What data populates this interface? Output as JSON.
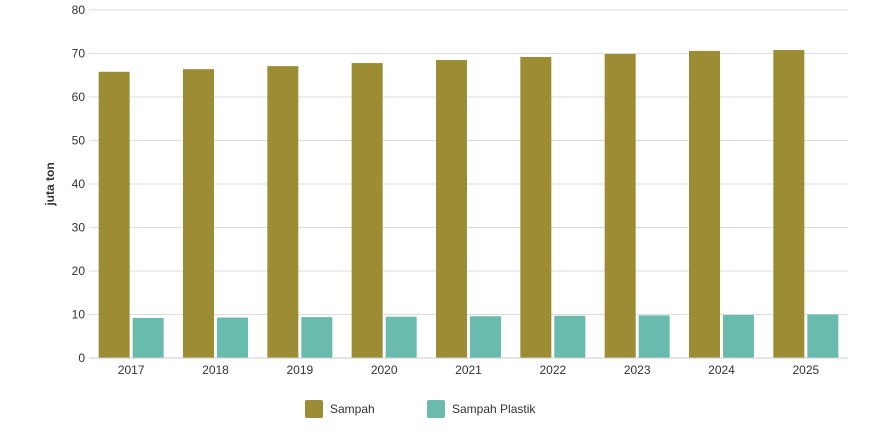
{
  "chart_data": {
    "type": "bar",
    "categories": [
      "2017",
      "2018",
      "2019",
      "2020",
      "2021",
      "2022",
      "2023",
      "2024",
      "2025"
    ],
    "series": [
      {
        "name": "Sampah",
        "color": "#9c8d34",
        "values": [
          65.8,
          66.4,
          67.1,
          67.8,
          68.5,
          69.2,
          69.9,
          70.6,
          70.8
        ]
      },
      {
        "name": "Sampah Plastik",
        "color": "#69bcad",
        "values": [
          9.2,
          9.3,
          9.4,
          9.5,
          9.6,
          9.7,
          9.8,
          9.9,
          10.0
        ]
      }
    ],
    "title": "",
    "xlabel": "",
    "ylabel": "juta ton",
    "ylim": [
      0,
      80
    ],
    "yticks": [
      0,
      10,
      20,
      30,
      40,
      50,
      60,
      70,
      80
    ],
    "grid": true,
    "legend_position": "bottom-center"
  }
}
